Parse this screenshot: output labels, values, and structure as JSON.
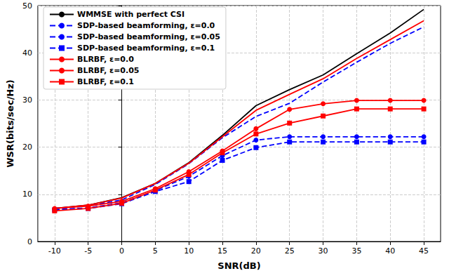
{
  "chart_data": {
    "type": "line",
    "x_label": "SNR(dB)",
    "y_label": "WSR(bits/sec/Hz)",
    "x": [
      -10,
      -5,
      0,
      5,
      10,
      15,
      20,
      25,
      30,
      35,
      40,
      45
    ],
    "xlim": [
      -12.5,
      47.5
    ],
    "xticks": [
      -10,
      -5,
      0,
      5,
      10,
      15,
      20,
      25,
      30,
      35,
      40,
      45
    ],
    "ylim": [
      0,
      50
    ],
    "yticks": [
      0,
      10,
      20,
      30,
      40,
      50
    ],
    "grid": true,
    "legend": "upper left",
    "series": [
      {
        "name": "WMMSE with perfect CSI",
        "color": "#000000",
        "marker": "none",
        "line_style": "solid",
        "values": [
          7.0,
          7.7,
          9.3,
          12.3,
          16.7,
          22.5,
          28.8,
          32.2,
          35.3,
          39.8,
          44.2,
          49.2
        ]
      },
      {
        "name": "SDP-based beamforming, ε=0.0",
        "color": "#0000ff",
        "marker": "none",
        "line_style": "dashed",
        "values": [
          7.0,
          7.6,
          8.8,
          12.1,
          16.5,
          22.0,
          26.5,
          29.3,
          33.8,
          38.0,
          42.0,
          45.5
        ]
      },
      {
        "name": "SDP-based beamforming, ε=0.05",
        "color": "#0000ff",
        "marker": "circle",
        "line_style": "dashed",
        "values": [
          6.8,
          7.1,
          8.2,
          10.8,
          13.8,
          18.2,
          21.5,
          22.2,
          22.2,
          22.2,
          22.2,
          22.2
        ]
      },
      {
        "name": "SDP-based beamforming, ε=0.1",
        "color": "#0000ff",
        "marker": "square",
        "line_style": "dashed",
        "values": [
          6.7,
          7.0,
          8.0,
          10.6,
          12.7,
          17.2,
          19.9,
          21.1,
          21.1,
          21.1,
          21.1,
          21.1
        ]
      },
      {
        "name": "BLRBF, ε=0.0",
        "color": "#ff0000",
        "marker": "none",
        "line_style": "solid",
        "values": [
          7.0,
          7.7,
          9.2,
          12.3,
          16.6,
          22.2,
          27.8,
          31.2,
          34.5,
          38.8,
          42.8,
          46.8
        ]
      },
      {
        "name": "BLRBF, ε=0.05",
        "color": "#ff0000",
        "marker": "circle",
        "line_style": "solid",
        "values": [
          7.0,
          7.5,
          8.5,
          11.2,
          14.8,
          19.2,
          23.9,
          28.0,
          29.2,
          29.9,
          29.9,
          29.9
        ]
      },
      {
        "name": "BLRBF, ε=0.1",
        "color": "#ff0000",
        "marker": "square",
        "line_style": "solid",
        "values": [
          6.5,
          7.0,
          8.1,
          10.9,
          14.2,
          18.8,
          22.8,
          25.1,
          26.6,
          28.1,
          28.1,
          28.1
        ]
      }
    ]
  }
}
